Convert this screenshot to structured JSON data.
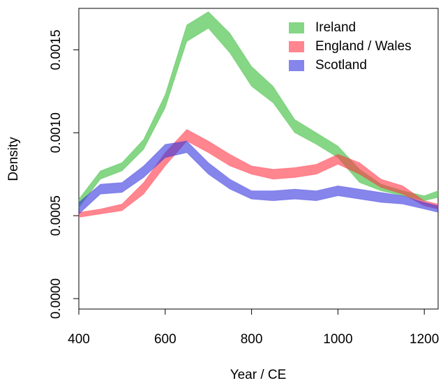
{
  "chart_data": {
    "type": "band",
    "x_label": "Year / CE",
    "y_label": "Density",
    "x": [
      400,
      450,
      500,
      550,
      600,
      650,
      700,
      750,
      800,
      850,
      900,
      950,
      1000,
      1050,
      1100,
      1150,
      1200,
      1232
    ],
    "series": [
      {
        "name": "Ireland",
        "color": "#33bb33",
        "lower": [
          0.00055,
          0.00072,
          0.00077,
          0.0009,
          0.00115,
          0.00155,
          0.00163,
          0.00148,
          0.00128,
          0.00118,
          0.001,
          0.00093,
          0.00085,
          0.0007,
          0.00065,
          0.00062,
          0.00059,
          0.00061
        ],
        "upper": [
          0.0006,
          0.00077,
          0.00082,
          0.00096,
          0.00123,
          0.00165,
          0.00173,
          0.0016,
          0.0014,
          0.00128,
          0.00108,
          0.001,
          0.00092,
          0.00078,
          0.00069,
          0.00065,
          0.00062,
          0.00065
        ]
      },
      {
        "name": "England / Wales",
        "color": "#ff3344",
        "lower": [
          0.00049,
          0.00051,
          0.00053,
          0.00063,
          0.0008,
          0.00095,
          0.00088,
          0.0008,
          0.00075,
          0.00072,
          0.00073,
          0.00075,
          0.00081,
          0.00075,
          0.00067,
          0.00063,
          0.00056,
          0.00054
        ],
        "upper": [
          0.00052,
          0.00054,
          0.00057,
          0.0007,
          0.00088,
          0.00102,
          0.00095,
          0.00087,
          0.0008,
          0.00078,
          0.00079,
          0.00081,
          0.00087,
          0.00082,
          0.00072,
          0.00068,
          0.00059,
          0.00057
        ]
      },
      {
        "name": "Scotland",
        "color": "#3333dd",
        "lower": [
          0.00051,
          0.00063,
          0.00064,
          0.00073,
          0.00085,
          0.00088,
          0.00075,
          0.00066,
          0.0006,
          0.00059,
          0.0006,
          0.00059,
          0.00062,
          0.0006,
          0.00058,
          0.00057,
          0.00054,
          0.00052
        ],
        "upper": [
          0.00058,
          0.00069,
          0.0007,
          0.0008,
          0.00093,
          0.00095,
          0.00082,
          0.00072,
          0.00065,
          0.00065,
          0.00066,
          0.00065,
          0.00068,
          0.00066,
          0.00064,
          0.00062,
          0.00058,
          0.00056
        ]
      }
    ],
    "xlim": [
      400,
      1232
    ],
    "ylim": [
      -6.3e-05,
      0.00175
    ],
    "xticks": [
      400,
      600,
      800,
      1000,
      1200
    ],
    "yticks": [
      {
        "value": 0,
        "label": "0.0000"
      },
      {
        "value": 0.0005,
        "label": "0.0005"
      },
      {
        "value": 0.001,
        "label": "0.0010"
      },
      {
        "value": 0.0015,
        "label": "0.0015"
      }
    ],
    "legend": "top-right"
  }
}
